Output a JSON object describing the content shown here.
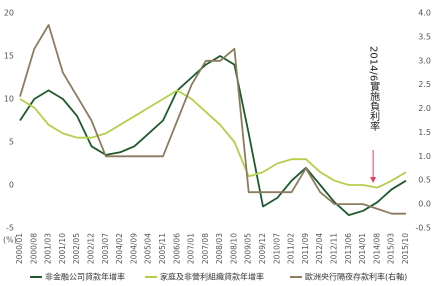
{
  "chart_data": {
    "type": "line",
    "categories": [
      "2000/01",
      "2000/08",
      "2001/03",
      "2001/10",
      "2002/05",
      "2002/12",
      "2003/07",
      "2004/02",
      "2004/09",
      "2005/04",
      "2005/11",
      "2006/06",
      "2007/01",
      "2007/08",
      "2008/03",
      "2008/10",
      "2009/05",
      "2009/12",
      "2010/07",
      "2011/02",
      "2011/09",
      "2012/04",
      "2012/11",
      "2013/06",
      "2014/01",
      "2014/08",
      "2015/03",
      "2015/10"
    ],
    "series": [
      {
        "name": "非金融公司貸款年增率",
        "color": "#1e5a2e",
        "values": [
          7.5,
          10,
          11,
          10,
          8,
          4.5,
          3.5,
          3.8,
          4.5,
          6,
          7.5,
          11,
          12.5,
          14,
          15,
          14,
          6,
          -2.5,
          -1.5,
          0.5,
          2,
          0,
          -2,
          -3.5,
          -3,
          -2,
          -0.5,
          0.5
        ]
      },
      {
        "name": "家庭及非營利組織貸款年增率",
        "color": "#b5cf4a",
        "values": [
          10,
          9,
          7,
          6,
          5.5,
          5.5,
          6,
          7,
          8,
          9,
          10,
          11,
          10,
          8.5,
          7,
          5,
          1,
          1.5,
          2.5,
          3,
          3,
          1.5,
          0.5,
          0,
          0,
          -0.3,
          0.5,
          1.5
        ]
      },
      {
        "name": "歐洲央行隔夜存款利率(右軸)",
        "color": "#8c7b5e",
        "axis": "y2",
        "values": [
          2.25,
          3.25,
          3.75,
          2.75,
          2.25,
          1.75,
          1,
          1,
          1,
          1,
          1,
          1.75,
          2.5,
          3,
          3,
          3.25,
          0.25,
          0.25,
          0.25,
          0.25,
          0.75,
          0.25,
          0,
          0,
          0,
          -0.1,
          -0.2,
          -0.2
        ]
      }
    ],
    "ylim": [
      -5,
      20
    ],
    "yticks": [
      -5,
      0,
      5,
      10,
      15,
      20
    ],
    "y2lim": [
      -0.5,
      4
    ],
    "y2ticks": [
      -0.5,
      {
        "value": 0,
        "label": "0.0"
      },
      0.5,
      {
        "value": 1,
        "label": "1.0"
      },
      1.5,
      {
        "value": 2,
        "label": "2.0"
      },
      2.5,
      {
        "value": 3,
        "label": "3.0"
      },
      3.5,
      {
        "value": 4,
        "label": "4.0"
      }
    ],
    "y_unit_label": "(%)",
    "annotation": {
      "text": "2014/6實施負利率",
      "color": "#e0405a"
    },
    "grid": false,
    "legend": "bottom"
  }
}
